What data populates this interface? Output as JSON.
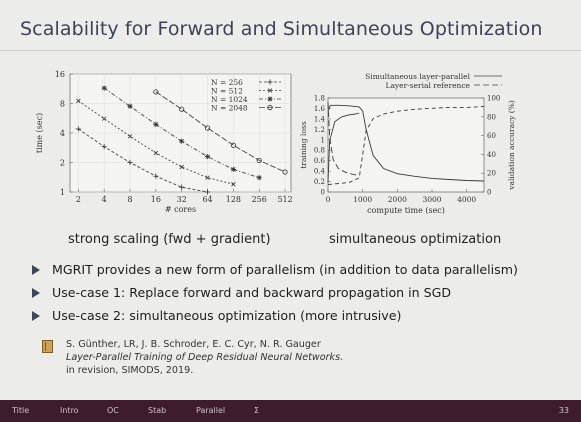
{
  "slide": {
    "title": "Scalability for Forward and Simultaneous Optimization",
    "page_number": "33"
  },
  "footer_nav": [
    "Title",
    "Intro",
    "OC",
    "Stab",
    "Parallel",
    "Σ"
  ],
  "figures": {
    "left_caption": "strong scaling (fwd + gradient)",
    "right_caption": "simultaneous optimization"
  },
  "bullets": [
    "MGRIT provides a new form of parallelism (in addition to data parallelism)",
    "Use-case 1: Replace forward and backward propagation in SGD",
    "Use-case 2: simultaneous optimization (more intrusive)"
  ],
  "reference": {
    "authors": "S. Günther, LR, J. B. Schroder, E. C. Cyr, N. R. Gauger",
    "paper_title": "Layer-Parallel Training of Deep Residual Neural Networks.",
    "venue": "in revision, SIMODS, 2019."
  },
  "colors": {
    "title": "#3d4258",
    "footer_bg": "#3c1c2d",
    "bullet_marker": "#3f465c"
  },
  "chart_data": [
    {
      "type": "line",
      "xlabel": "# cores",
      "ylabel": "time (sec)",
      "x_scale": "log2",
      "y_scale": "log",
      "x_ticks": [
        "2",
        "4",
        "8",
        "16",
        "32",
        "64",
        "128",
        "256",
        "512"
      ],
      "y_ticks": [
        "1",
        "2",
        "4",
        "8",
        "16"
      ],
      "xlim": [
        1.6,
        600
      ],
      "ylim": [
        1,
        16
      ],
      "grid": true,
      "legend_position": "top-right",
      "series": [
        {
          "name": "N = 256",
          "dash": "3,2",
          "marker": "+",
          "x": [
            2,
            4,
            8,
            16,
            32,
            64
          ],
          "y": [
            4.4,
            2.9,
            2.0,
            1.45,
            1.12,
            1.0
          ]
        },
        {
          "name": "N = 512",
          "dash": "2,2",
          "marker": "x",
          "x": [
            2,
            4,
            8,
            16,
            32,
            64,
            128
          ],
          "y": [
            8.5,
            5.6,
            3.7,
            2.5,
            1.8,
            1.4,
            1.2
          ]
        },
        {
          "name": "N = 1024",
          "dash": "4,2,1,2",
          "marker": "*",
          "x": [
            4,
            8,
            16,
            32,
            64,
            128,
            256
          ],
          "y": [
            11.5,
            7.5,
            4.9,
            3.3,
            2.3,
            1.7,
            1.4
          ]
        },
        {
          "name": "N = 2048",
          "dash": "6,2",
          "marker": "o",
          "x": [
            16,
            32,
            64,
            128,
            256,
            512
          ],
          "y": [
            10.5,
            7.0,
            4.5,
            3.0,
            2.1,
            1.6
          ]
        }
      ]
    },
    {
      "type": "line",
      "xlabel": "compute time (sec)",
      "ylabel": "training loss",
      "ylabel_right": "validation accuracy (%)",
      "xlim": [
        0,
        4500
      ],
      "ylim": [
        0,
        1.8
      ],
      "ylim_right": [
        0,
        100
      ],
      "x_ticks": [
        "0",
        "1000",
        "2000",
        "3000",
        "4000"
      ],
      "y_ticks": [
        "0",
        "0.2",
        "0.4",
        "0.6",
        "0.8",
        "1",
        "1.2",
        "1.4",
        "1.6",
        "1.8"
      ],
      "y_ticks_right": [
        "0",
        "20",
        "40",
        "60",
        "80",
        "100"
      ],
      "legend_position": "top-right",
      "series": [
        {
          "name": "Simultaneous layer-parallel",
          "axis": "left",
          "dash": "none",
          "x": [
            0,
            60,
            120,
            300,
            600,
            900,
            1000,
            1100,
            1300,
            1600,
            2000,
            2500,
            3000,
            3500,
            4000,
            4500
          ],
          "y": [
            1.55,
            1.65,
            1.66,
            1.66,
            1.65,
            1.63,
            1.55,
            1.2,
            0.7,
            0.45,
            0.35,
            0.3,
            0.26,
            0.24,
            0.22,
            0.21
          ]
        },
        {
          "name": "Layer-serial reference",
          "axis": "left",
          "dash": "6,3",
          "x": [
            0,
            50,
            150,
            300,
            500,
            700,
            900
          ],
          "y": [
            1.72,
            1.05,
            0.62,
            0.45,
            0.38,
            0.34,
            0.31
          ]
        },
        {
          "name": "Simultaneous layer-parallel",
          "axis": "right",
          "dash": "none",
          "x": [
            0,
            50,
            200,
            400,
            600,
            800,
            900
          ],
          "y": [
            10,
            55,
            75,
            80,
            82,
            83,
            84
          ]
        },
        {
          "name": "Layer-serial reference",
          "axis": "right",
          "dash": "4,3",
          "x": [
            0,
            600,
            900,
            1000,
            1100,
            1300,
            1600,
            2000,
            2500,
            3000,
            3500,
            4000,
            4500
          ],
          "y": [
            8,
            10,
            15,
            40,
            65,
            78,
            83,
            86,
            88,
            89,
            90,
            90,
            91
          ]
        }
      ]
    }
  ]
}
